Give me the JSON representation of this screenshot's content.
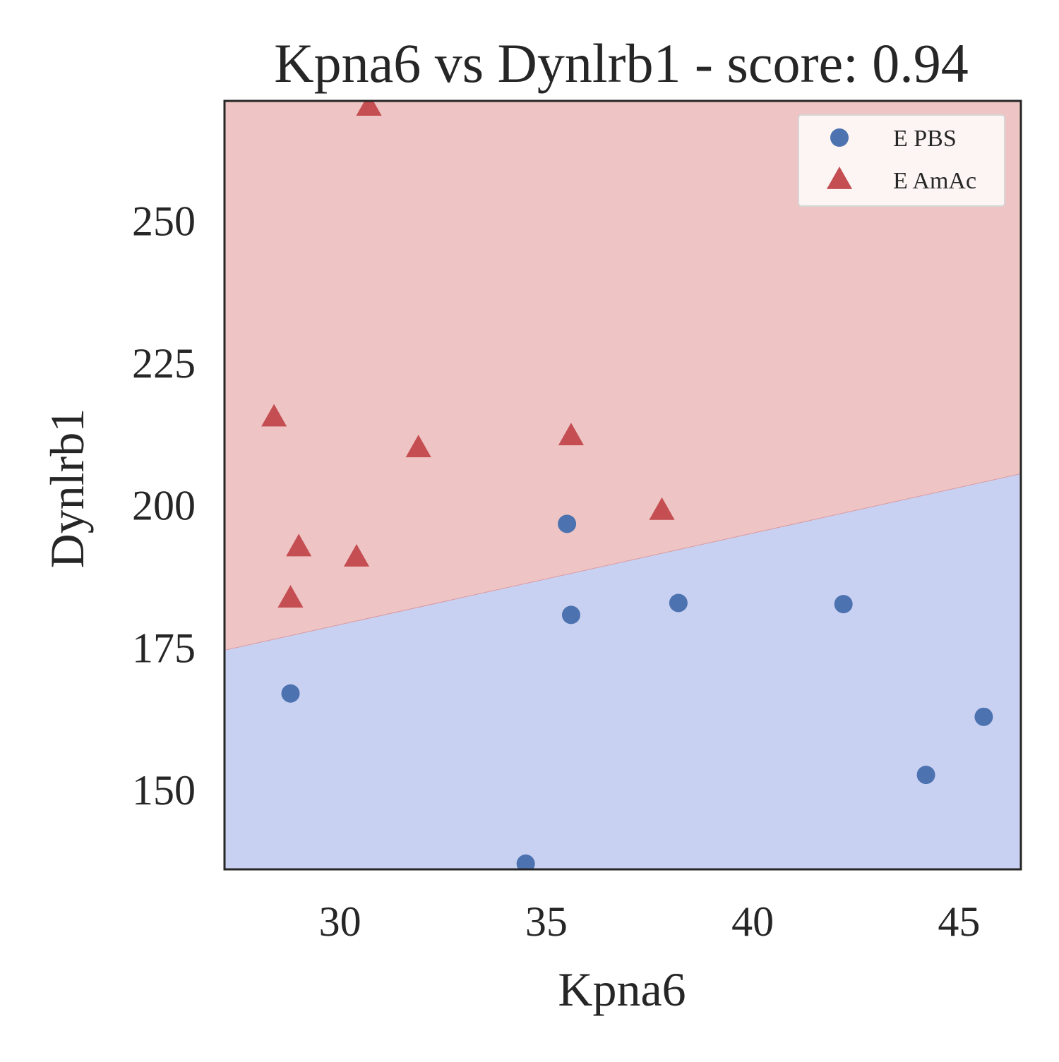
{
  "chart_data": {
    "type": "scatter",
    "title": "Kpna6 vs Dynlrb1 - score: 0.94",
    "xlabel": "Kpna6",
    "ylabel": "Dynlrb1",
    "xlim": [
      27.2,
      46.5
    ],
    "ylim": [
      136,
      271
    ],
    "xticks": [
      30,
      35,
      40,
      45
    ],
    "yticks": [
      150,
      175,
      200,
      225,
      250
    ],
    "grid": false,
    "legend_position": "top-right",
    "decision_boundary": {
      "x": [
        27.2,
        46.5
      ],
      "y": [
        174.5,
        205.5
      ],
      "above_label": "E AmAc",
      "below_label": "E PBS",
      "above_color": "#eec5c4",
      "below_color": "#c9d1f2"
    },
    "series": [
      {
        "name": "E PBS",
        "marker": "circle",
        "color": "#4c72b0",
        "points": [
          {
            "x": 28.8,
            "y": 166.9
          },
          {
            "x": 34.5,
            "y": 137.0
          },
          {
            "x": 35.5,
            "y": 196.7
          },
          {
            "x": 35.6,
            "y": 180.7
          },
          {
            "x": 38.2,
            "y": 182.8
          },
          {
            "x": 42.2,
            "y": 182.6
          },
          {
            "x": 44.2,
            "y": 152.6
          },
          {
            "x": 45.6,
            "y": 162.8
          }
        ]
      },
      {
        "name": "E AmAc",
        "marker": "triangle",
        "color": "#c44e52",
        "points": [
          {
            "x": 28.4,
            "y": 215.4
          },
          {
            "x": 28.8,
            "y": 183.6
          },
          {
            "x": 29.0,
            "y": 192.6
          },
          {
            "x": 30.4,
            "y": 190.8
          },
          {
            "x": 30.7,
            "y": 270.0
          },
          {
            "x": 31.9,
            "y": 210.0
          },
          {
            "x": 35.6,
            "y": 212.1
          },
          {
            "x": 37.8,
            "y": 199.0
          }
        ]
      }
    ]
  }
}
